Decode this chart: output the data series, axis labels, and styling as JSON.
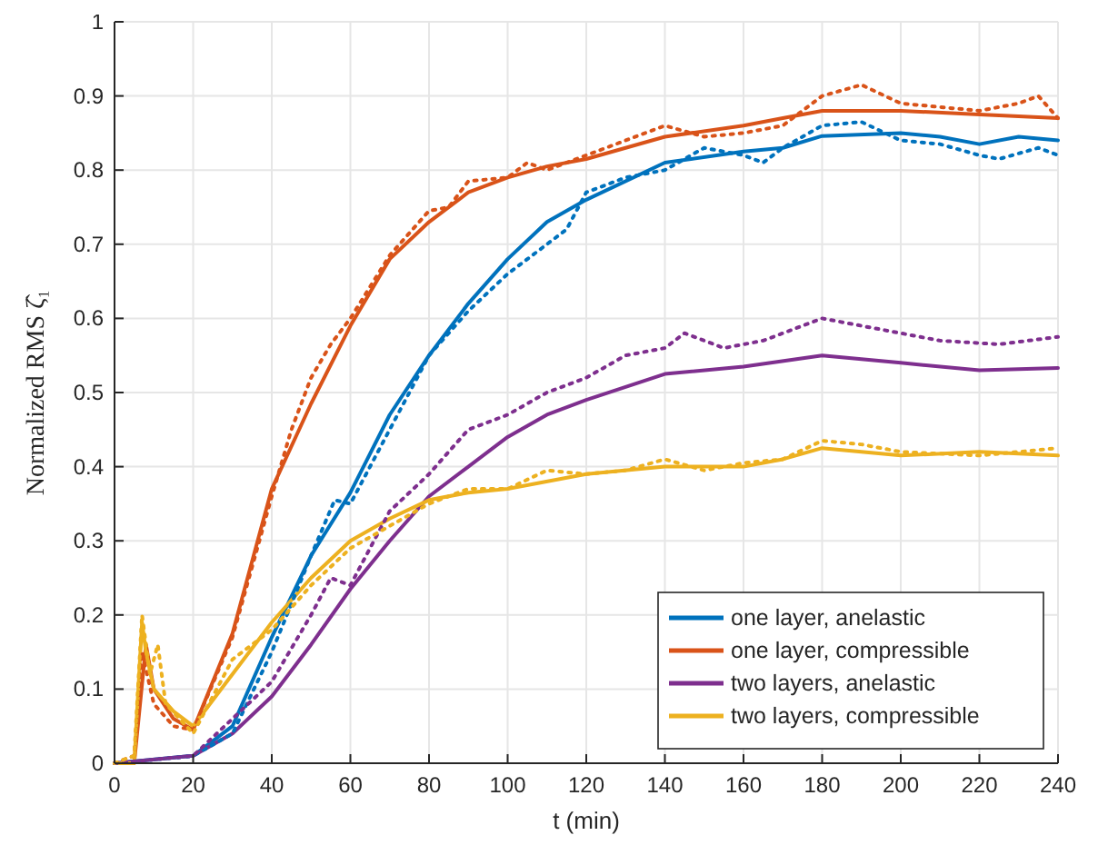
{
  "chart_data": {
    "type": "line",
    "xlabel": "t (min)",
    "ylabel": "Normalized RMS ζ̂₁",
    "xlim": [
      0,
      240
    ],
    "ylim": [
      0,
      1
    ],
    "xticks": [
      0,
      20,
      40,
      60,
      80,
      100,
      120,
      140,
      160,
      180,
      200,
      220,
      240
    ],
    "yticks": [
      0,
      0.1,
      0.2,
      0.3,
      0.4,
      0.5,
      0.6,
      0.7,
      0.8,
      0.9,
      1
    ],
    "grid": true,
    "legend": "bottom right",
    "marker": "none",
    "series": [
      {
        "name": "one layer, anelastic",
        "color": "#0072bd",
        "line_style": "solid",
        "x": [
          0,
          20,
          30,
          40,
          50,
          60,
          70,
          80,
          90,
          100,
          110,
          120,
          140,
          160,
          170,
          180,
          200,
          210,
          220,
          230,
          240
        ],
        "values": [
          0,
          0.01,
          0.05,
          0.17,
          0.28,
          0.365,
          0.47,
          0.55,
          0.62,
          0.68,
          0.73,
          0.76,
          0.81,
          0.825,
          0.83,
          0.846,
          0.85,
          0.845,
          0.835,
          0.845,
          0.84
        ]
      },
      {
        "name": "one layer, compressible",
        "color": "#d95319",
        "line_style": "solid",
        "x": [
          0,
          5,
          8,
          10,
          15,
          20,
          30,
          40,
          50,
          60,
          70,
          80,
          90,
          100,
          110,
          120,
          140,
          160,
          170,
          180,
          200,
          220,
          240
        ],
        "values": [
          0,
          0,
          0.16,
          0.1,
          0.06,
          0.045,
          0.175,
          0.37,
          0.485,
          0.59,
          0.68,
          0.73,
          0.77,
          0.79,
          0.805,
          0.815,
          0.845,
          0.86,
          0.87,
          0.88,
          0.88,
          0.875,
          0.87
        ]
      },
      {
        "name": "two layers, anelastic",
        "color": "#7e2f8e",
        "line_style": "solid",
        "x": [
          0,
          20,
          30,
          40,
          50,
          60,
          70,
          80,
          90,
          100,
          110,
          120,
          140,
          160,
          180,
          200,
          220,
          240
        ],
        "values": [
          0,
          0.01,
          0.04,
          0.09,
          0.16,
          0.235,
          0.3,
          0.36,
          0.4,
          0.44,
          0.47,
          0.49,
          0.525,
          0.535,
          0.55,
          0.54,
          0.53,
          0.533
        ]
      },
      {
        "name": "two layers, compressible",
        "color": "#edb120",
        "line_style": "solid",
        "x": [
          0,
          5,
          7,
          8,
          10,
          15,
          20,
          30,
          40,
          50,
          60,
          70,
          80,
          90,
          100,
          120,
          140,
          160,
          170,
          180,
          200,
          220,
          240
        ],
        "values": [
          0,
          0,
          0.19,
          0.15,
          0.1,
          0.07,
          0.05,
          0.12,
          0.19,
          0.25,
          0.3,
          0.33,
          0.355,
          0.365,
          0.37,
          0.39,
          0.4,
          0.4,
          0.41,
          0.425,
          0.415,
          0.42,
          0.415
        ]
      },
      {
        "color": "#0072bd",
        "line_style": "dotted",
        "x": [
          0,
          20,
          30,
          40,
          50,
          56,
          60,
          70,
          80,
          90,
          100,
          110,
          115,
          120,
          130,
          140,
          150,
          160,
          165,
          170,
          180,
          190,
          200,
          210,
          220,
          225,
          235,
          240
        ],
        "values": [
          0,
          0.01,
          0.04,
          0.15,
          0.28,
          0.355,
          0.35,
          0.45,
          0.55,
          0.61,
          0.66,
          0.7,
          0.72,
          0.77,
          0.79,
          0.8,
          0.83,
          0.82,
          0.81,
          0.83,
          0.86,
          0.865,
          0.84,
          0.835,
          0.82,
          0.815,
          0.83,
          0.82
        ]
      },
      {
        "color": "#d95319",
        "line_style": "dotted",
        "x": [
          0,
          5,
          7,
          10,
          15,
          20,
          30,
          40,
          45,
          50,
          55,
          60,
          70,
          80,
          85,
          90,
          100,
          105,
          110,
          120,
          140,
          150,
          160,
          170,
          180,
          190,
          200,
          220,
          230,
          235,
          240
        ],
        "values": [
          0,
          0.01,
          0.15,
          0.08,
          0.05,
          0.045,
          0.17,
          0.36,
          0.45,
          0.52,
          0.565,
          0.6,
          0.685,
          0.745,
          0.75,
          0.785,
          0.79,
          0.81,
          0.8,
          0.82,
          0.86,
          0.845,
          0.85,
          0.86,
          0.9,
          0.915,
          0.89,
          0.88,
          0.89,
          0.9,
          0.87
        ]
      },
      {
        "color": "#7e2f8e",
        "line_style": "dotted",
        "x": [
          0,
          20,
          30,
          40,
          50,
          55,
          60,
          70,
          80,
          90,
          100,
          110,
          120,
          130,
          140,
          145,
          155,
          165,
          180,
          200,
          210,
          225,
          240
        ],
        "values": [
          0,
          0.01,
          0.06,
          0.11,
          0.2,
          0.25,
          0.24,
          0.34,
          0.39,
          0.45,
          0.47,
          0.5,
          0.52,
          0.55,
          0.56,
          0.58,
          0.56,
          0.57,
          0.6,
          0.58,
          0.57,
          0.565,
          0.575
        ]
      },
      {
        "color": "#edb120",
        "line_style": "dotted",
        "x": [
          0,
          5,
          7,
          9,
          11,
          13,
          20,
          30,
          40,
          50,
          60,
          70,
          80,
          90,
          100,
          110,
          120,
          130,
          140,
          150,
          160,
          170,
          180,
          190,
          200,
          220,
          240
        ],
        "values": [
          0,
          0.01,
          0.2,
          0.12,
          0.16,
          0.08,
          0.04,
          0.14,
          0.18,
          0.24,
          0.29,
          0.32,
          0.35,
          0.37,
          0.37,
          0.395,
          0.39,
          0.395,
          0.41,
          0.395,
          0.405,
          0.41,
          0.435,
          0.43,
          0.42,
          0.415,
          0.425
        ]
      }
    ]
  }
}
